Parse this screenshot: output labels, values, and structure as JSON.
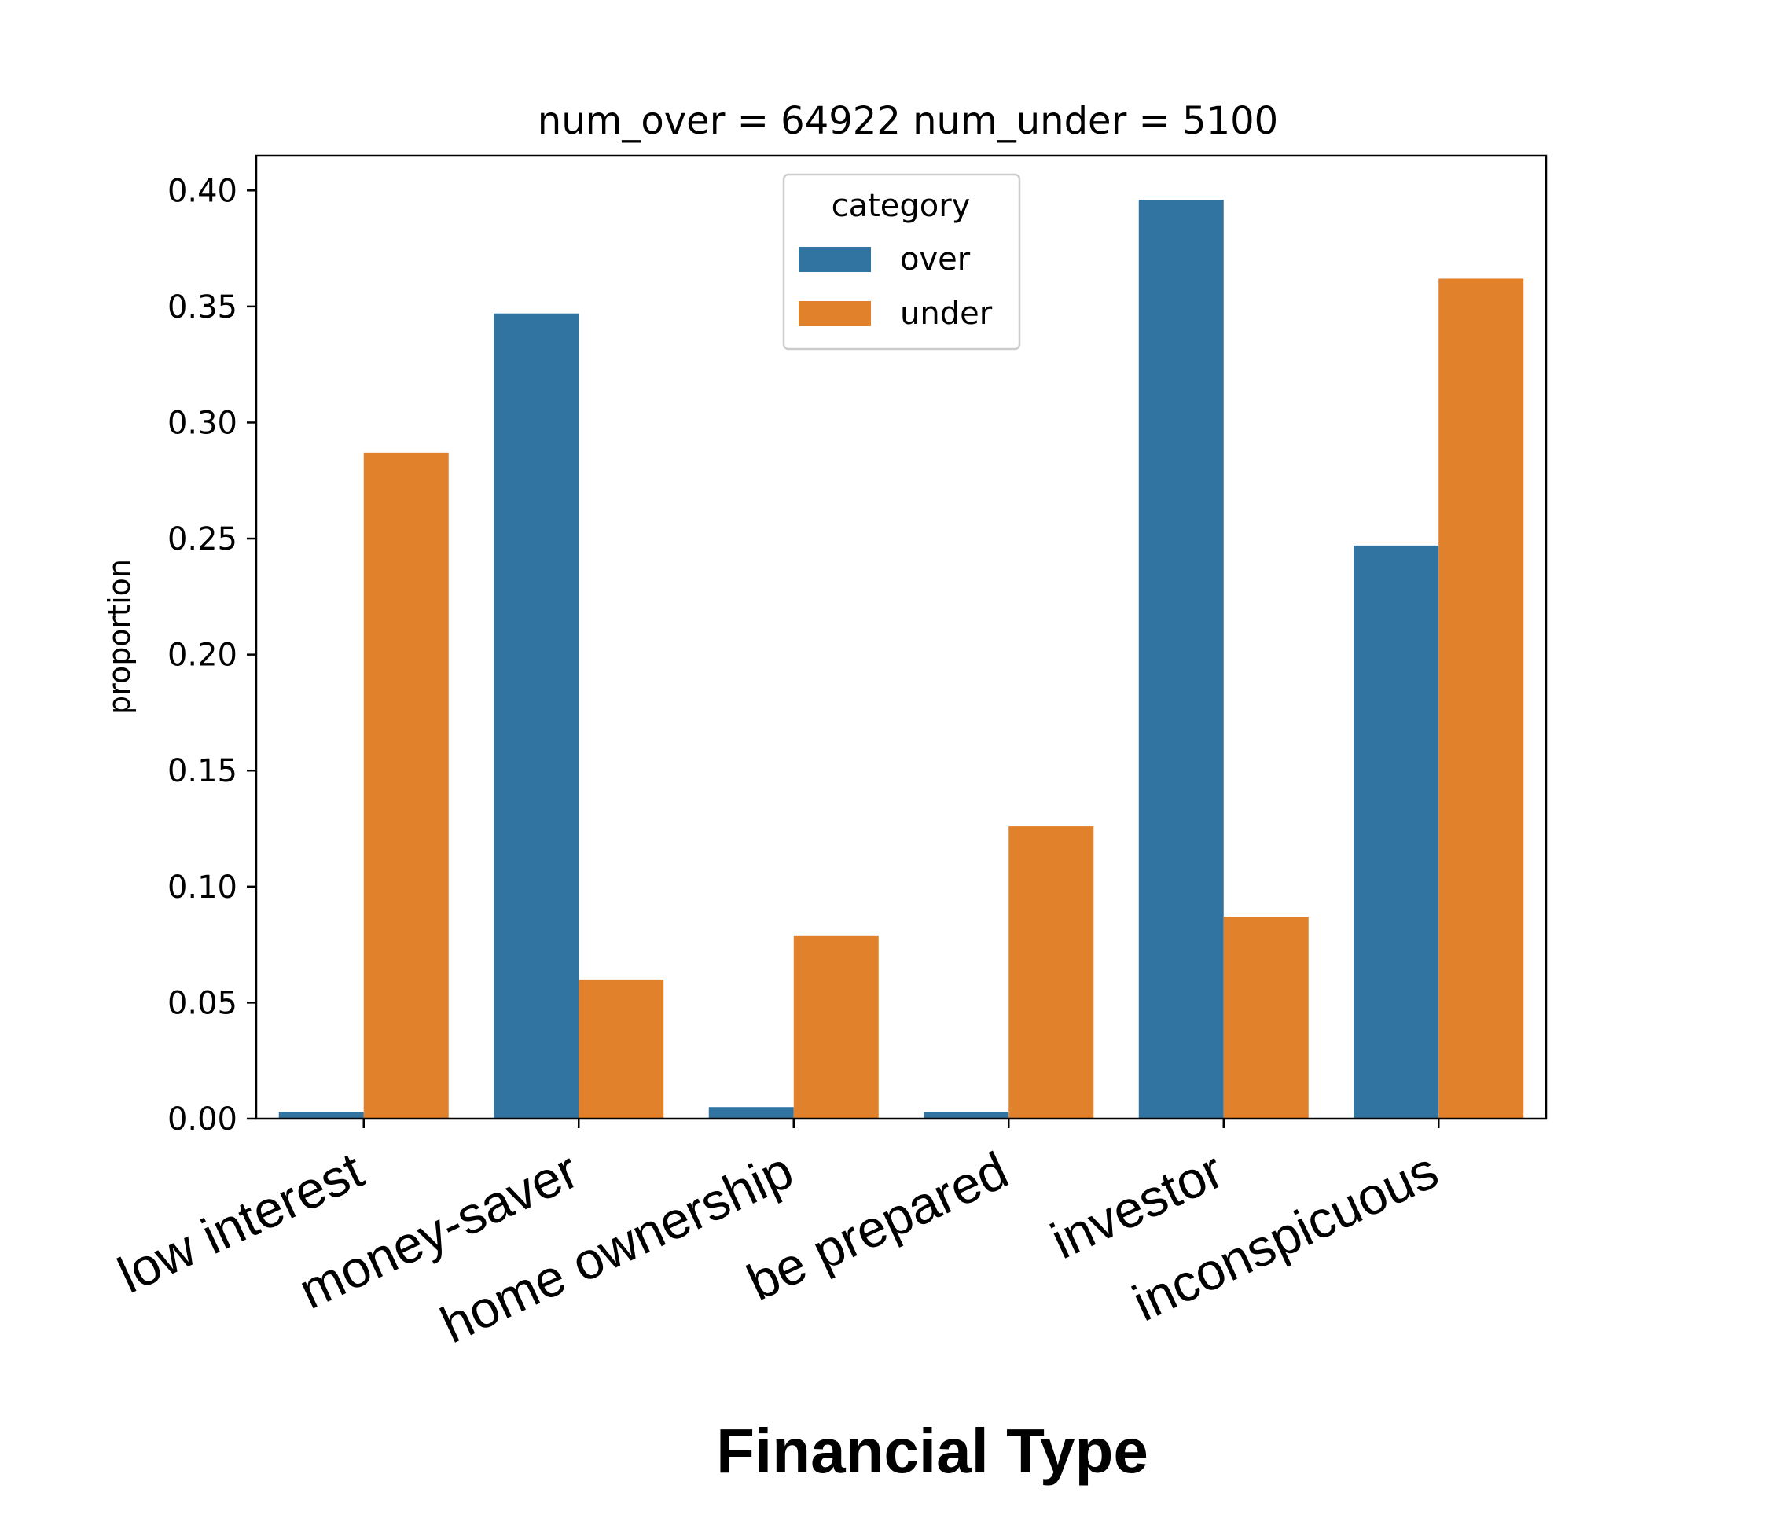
{
  "chart_data": {
    "type": "bar",
    "title": "num_over = 64922  num_under = 5100",
    "xlabel": "Financial Type",
    "ylabel": "proportion",
    "categories": [
      "low interest",
      "money-saver",
      "home ownership",
      "be prepared",
      "investor",
      "inconspicuous"
    ],
    "series": [
      {
        "name": "over",
        "color": "#3274a1",
        "values": [
          0.003,
          0.347,
          0.005,
          0.003,
          0.396,
          0.247
        ]
      },
      {
        "name": "under",
        "color": "#e1812c",
        "values": [
          0.287,
          0.06,
          0.079,
          0.126,
          0.087,
          0.362
        ]
      }
    ],
    "ylim": [
      0,
      0.415
    ],
    "yticks": [
      "0.00",
      "0.05",
      "0.10",
      "0.15",
      "0.20",
      "0.25",
      "0.30",
      "0.35",
      "0.40"
    ],
    "ytick_values": [
      0,
      0.05,
      0.1,
      0.15,
      0.2,
      0.25,
      0.3,
      0.35,
      0.4
    ],
    "legend": {
      "title": "category",
      "position": "top-center"
    },
    "grid": false
  }
}
